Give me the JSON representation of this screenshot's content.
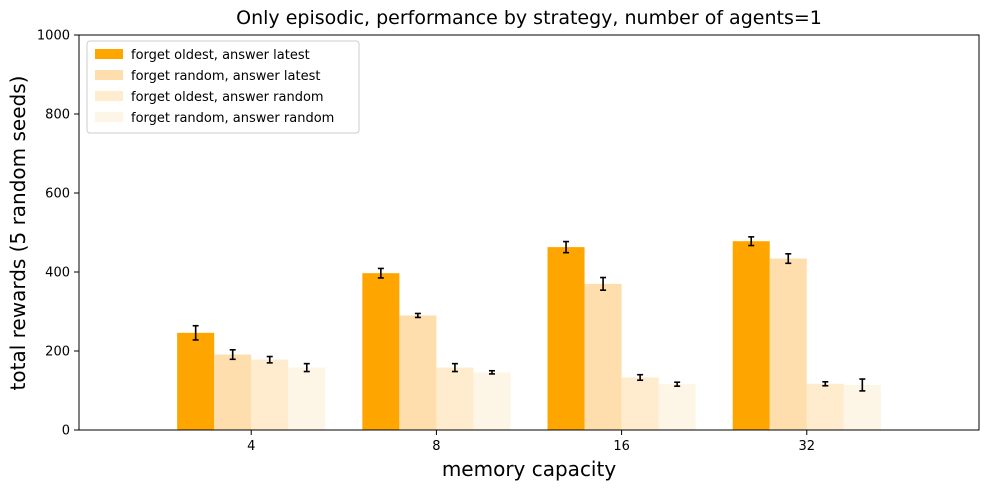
{
  "chart_data": {
    "type": "bar",
    "title": "Only episodic, performance by strategy, number of agents=1",
    "xlabel": "memory capacity",
    "ylabel": "total rewards (5 random seeds)",
    "categories": [
      "4",
      "8",
      "16",
      "32"
    ],
    "ylim": [
      0,
      1000
    ],
    "yticks": [
      0,
      200,
      400,
      600,
      800,
      1000
    ],
    "grid": false,
    "legend_position": "top-left",
    "series": [
      {
        "name": "forget oldest, answer latest",
        "color": "#FFA500",
        "values": [
          246,
          397,
          463,
          478
        ],
        "errors": [
          18,
          12,
          14,
          11
        ]
      },
      {
        "name": "forget random, answer latest",
        "color": "#FFDEAD",
        "values": [
          191,
          290,
          370,
          434
        ],
        "errors": [
          12,
          5,
          16,
          12
        ]
      },
      {
        "name": "forget oldest, answer random",
        "color": "#FFEBCD",
        "values": [
          178,
          158,
          133,
          117
        ],
        "errors": [
          8,
          10,
          7,
          5
        ]
      },
      {
        "name": "forget random, answer random",
        "color": "#FDF5E6",
        "values": [
          158,
          146,
          116,
          114
        ],
        "errors": [
          10,
          4,
          5,
          15
        ]
      }
    ]
  }
}
